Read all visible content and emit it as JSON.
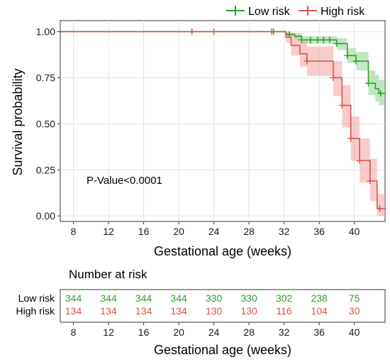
{
  "chart_data": {
    "type": "line",
    "subtype": "kaplan-meier",
    "xlabel": "Gestational age (weeks)",
    "ylabel": "Survival probability",
    "xlim": [
      6.5,
      43.5
    ],
    "ylim": [
      -0.03,
      1.06
    ],
    "x_ticks": [
      8,
      12,
      16,
      20,
      24,
      28,
      32,
      36,
      40
    ],
    "x_tick_labels": [
      "8",
      "12",
      "16",
      "20",
      "24",
      "28",
      "32",
      "36",
      "40"
    ],
    "y_ticks": [
      0,
      0.25,
      0.5,
      0.75,
      1.0
    ],
    "y_tick_labels": [
      "0.00",
      "0.25",
      "0.50",
      "0.75",
      "1.00"
    ],
    "grid": true,
    "legend_position": "top-right",
    "annotation": "P-Value<0.0001",
    "series": [
      {
        "name": "Low risk",
        "color": "#2ca02c",
        "fill": "#8fd18f",
        "steps": [
          [
            6.5,
            1.0
          ],
          [
            31.6,
            1.0
          ],
          [
            32.2,
            0.985
          ],
          [
            33.2,
            0.975
          ],
          [
            34.0,
            0.955
          ],
          [
            38.0,
            0.935
          ],
          [
            39.2,
            0.87
          ],
          [
            40.2,
            0.84
          ],
          [
            41.6,
            0.72
          ],
          [
            42.4,
            0.69
          ],
          [
            42.8,
            0.665
          ],
          [
            43.5,
            0.665
          ]
        ],
        "lower": [
          1.0,
          1.0,
          0.975,
          0.955,
          0.935,
          0.9,
          0.83,
          0.79,
          0.655,
          0.62,
          0.6,
          0.6
        ],
        "upper": [
          1.0,
          1.0,
          0.995,
          0.992,
          0.975,
          0.965,
          0.91,
          0.89,
          0.79,
          0.765,
          0.74,
          0.74
        ],
        "censor": [
          [
            30.8,
            1.0
          ],
          [
            32.6,
            0.985
          ],
          [
            34.0,
            0.955
          ],
          [
            35.0,
            0.955
          ],
          [
            35.8,
            0.955
          ],
          [
            36.5,
            0.955
          ],
          [
            37.2,
            0.955
          ],
          [
            38.0,
            0.935
          ],
          [
            39.2,
            0.87
          ],
          [
            40.2,
            0.84
          ],
          [
            41.6,
            0.72
          ],
          [
            43.0,
            0.665
          ]
        ]
      },
      {
        "name": "High risk",
        "color": "#d9534f",
        "fill": "#f4a3a3",
        "steps": [
          [
            6.5,
            1.0
          ],
          [
            31.0,
            1.0
          ],
          [
            32.2,
            0.97
          ],
          [
            32.8,
            0.925
          ],
          [
            33.8,
            0.88
          ],
          [
            34.6,
            0.84
          ],
          [
            37.6,
            0.75
          ],
          [
            38.6,
            0.6
          ],
          [
            39.6,
            0.42
          ],
          [
            40.6,
            0.3
          ],
          [
            41.8,
            0.19
          ],
          [
            42.6,
            0.04
          ],
          [
            43.5,
            0.04
          ]
        ],
        "lower": [
          1.0,
          1.0,
          0.94,
          0.87,
          0.81,
          0.76,
          0.65,
          0.48,
          0.3,
          0.18,
          0.08,
          0.0,
          0.0
        ],
        "upper": [
          1.0,
          1.0,
          1.0,
          0.98,
          0.95,
          0.92,
          0.84,
          0.71,
          0.54,
          0.42,
          0.31,
          0.12,
          0.12
        ],
        "censor": [
          [
            21.5,
            1.0
          ],
          [
            24.0,
            1.0
          ],
          [
            30.6,
            1.0
          ],
          [
            34.6,
            0.84
          ],
          [
            37.6,
            0.75
          ],
          [
            38.6,
            0.6
          ],
          [
            39.6,
            0.42
          ],
          [
            40.6,
            0.3
          ],
          [
            41.8,
            0.19
          ],
          [
            42.9,
            0.04
          ]
        ]
      }
    ],
    "risk_table": {
      "title": "Number at risk",
      "xlabel": "Gestational age (weeks)",
      "x_ticks": [
        8,
        12,
        16,
        20,
        24,
        28,
        32,
        36,
        40
      ],
      "x_tick_labels": [
        "8",
        "12",
        "16",
        "20",
        "24",
        "28",
        "32",
        "36",
        "40"
      ],
      "rows": [
        {
          "name": "Low risk",
          "color": "#2ca02c",
          "values": [
            "344",
            "344",
            "344",
            "344",
            "330",
            "330",
            "302",
            "238",
            "75"
          ]
        },
        {
          "name": "High risk",
          "color": "#d9534f",
          "values": [
            "134",
            "134",
            "134",
            "134",
            "130",
            "130",
            "116",
            "104",
            "30"
          ]
        }
      ]
    }
  }
}
